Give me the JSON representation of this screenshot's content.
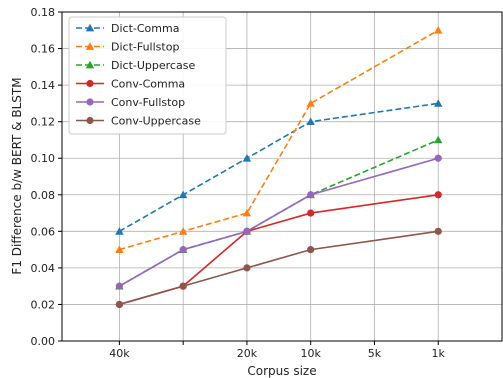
{
  "chart_data": {
    "type": "line",
    "xlabel": "Corpus size",
    "ylabel": "F1 Difference b/w BERT & BLSTM",
    "x_positions": [
      0,
      1,
      2,
      3,
      4,
      5
    ],
    "x_ticks": [
      {
        "pos": 0,
        "label": "40k"
      },
      {
        "pos": 1,
        "label": ""
      },
      {
        "pos": 2,
        "label": "20k"
      },
      {
        "pos": 3,
        "label": "10k"
      },
      {
        "pos": 4,
        "label": "5k"
      },
      {
        "pos": 5,
        "label": "1k"
      }
    ],
    "xlim": [
      -0.9,
      6.0
    ],
    "ylim": [
      0,
      0.18
    ],
    "y_ticks": [
      "0.00",
      "0.02",
      "0.04",
      "0.06",
      "0.08",
      "0.10",
      "0.12",
      "0.14",
      "0.16",
      "0.18"
    ],
    "grid": true,
    "legend_position": "top-left",
    "series": [
      {
        "name": "Dict-Comma",
        "color": "#1f77b4",
        "dash": true,
        "marker": "triangle",
        "x": [
          0,
          1,
          2,
          3,
          5
        ],
        "y": [
          0.06,
          0.08,
          0.1,
          0.12,
          0.13
        ]
      },
      {
        "name": "Dict-Fullstop",
        "color": "#ff7f0e",
        "dash": true,
        "marker": "triangle",
        "x": [
          0,
          1,
          2,
          3,
          5
        ],
        "y": [
          0.05,
          0.06,
          0.07,
          0.13,
          0.17
        ]
      },
      {
        "name": "Dict-Uppercase",
        "color": "#2ca02c",
        "dash": true,
        "marker": "triangle",
        "x": [
          0,
          1,
          2,
          3,
          5
        ],
        "y": [
          0.03,
          0.05,
          0.06,
          0.08,
          0.11
        ]
      },
      {
        "name": "Conv-Comma",
        "color": "#d62728",
        "dash": false,
        "marker": "circle",
        "x": [
          0,
          1,
          2,
          3,
          5
        ],
        "y": [
          0.02,
          0.03,
          0.06,
          0.07,
          0.08
        ]
      },
      {
        "name": "Conv-Fullstop",
        "color": "#9467bd",
        "dash": false,
        "marker": "circle",
        "x": [
          0,
          1,
          2,
          3,
          5
        ],
        "y": [
          0.03,
          0.05,
          0.06,
          0.08,
          0.1
        ]
      },
      {
        "name": "Conv-Uppercase",
        "color": "#8c564b",
        "dash": false,
        "marker": "circle",
        "x": [
          0,
          1,
          2,
          3,
          5
        ],
        "y": [
          0.02,
          0.03,
          0.04,
          0.05,
          0.06
        ]
      }
    ]
  }
}
